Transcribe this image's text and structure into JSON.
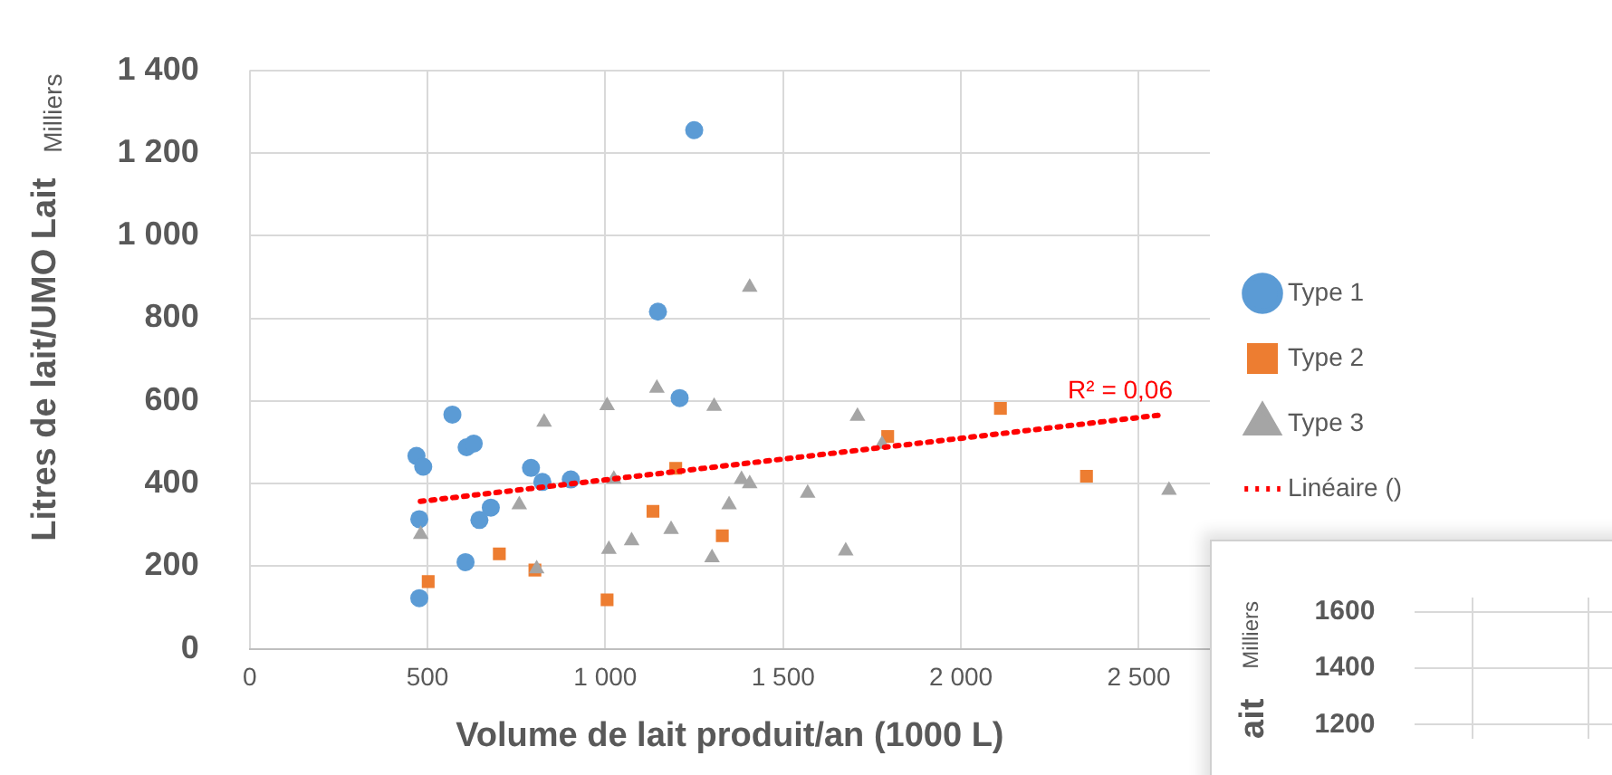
{
  "chart_data": [
    {
      "type": "scatter",
      "xlabel": "Volume de lait produit/an (1000 L)",
      "ylabel": "Litres de lait/UMO Lait",
      "annotations": [
        "Milliers",
        "R² = 0,06"
      ],
      "xlim": [
        0,
        2700
      ],
      "xticks": [
        {
          "value": 0,
          "label": "0"
        },
        {
          "value": 500,
          "label": "500"
        },
        {
          "value": 1000,
          "label": "1 000"
        },
        {
          "value": 1500,
          "label": "1 500"
        },
        {
          "value": 2000,
          "label": "2 000"
        },
        {
          "value": 2500,
          "label": "2 500"
        }
      ],
      "ylim": [
        0,
        1400
      ],
      "yticks": [
        {
          "value": 0,
          "label": "0"
        },
        {
          "value": 200,
          "label": "200"
        },
        {
          "value": 400,
          "label": "400"
        },
        {
          "value": 600,
          "label": "600"
        },
        {
          "value": 800,
          "label": "800"
        },
        {
          "value": 1000,
          "label": "1 000"
        },
        {
          "value": 1200,
          "label": "1 200"
        },
        {
          "value": 1400,
          "label": "1 400"
        }
      ],
      "grid": true,
      "legend": "right",
      "series": [
        {
          "name": "Type 1",
          "color": "#5b9bd5",
          "marker": "circle",
          "x": [
            1250,
            1148,
            1209,
            570,
            469,
            488,
            610,
            630,
            791,
            823,
            903,
            477,
            678,
            646,
            607,
            477
          ],
          "values": [
            1255,
            816,
            607,
            567,
            467,
            441,
            488,
            497,
            438,
            404,
            410,
            314,
            342,
            312,
            210,
            123
          ]
        },
        {
          "name": "Type 2",
          "color": "#ed7d31",
          "marker": "square",
          "x": [
            502,
            702,
            802,
            1005,
            1134,
            1198,
            1329,
            2111,
            2353,
            1794
          ],
          "values": [
            163,
            230,
            191,
            119,
            333,
            437,
            274,
            582,
            418,
            514
          ]
        },
        {
          "name": "Type 3",
          "color": "#a5a5a5",
          "marker": "triangle",
          "x": [
            481,
            758,
            828,
            807,
            1005,
            1010,
            1024,
            1074,
            1145,
            1185,
            1306,
            1300,
            1348,
            1383,
            1406,
            1406,
            1709,
            1569,
            1676,
            1778,
            2585
          ],
          "values": [
            277,
            349,
            549,
            194,
            589,
            241,
            411,
            262,
            631,
            289,
            587,
            221,
            349,
            410,
            400,
            875,
            563,
            377,
            237,
            495,
            384
          ]
        },
        {
          "name": "Linéaire ()",
          "type": "line",
          "color": "#ff0000",
          "marker": "none",
          "line_style": "dotted",
          "x": [
            480,
            2560
          ],
          "values": [
            357,
            566
          ]
        }
      ]
    },
    {
      "type": "scatter",
      "ylabel": "ait",
      "annotations": [
        "Milliers"
      ],
      "categories": [
        null,
        null
      ],
      "ylim": [
        1150,
        1650
      ],
      "yticks": [
        1200,
        1400,
        1600
      ],
      "grid": true,
      "tick_labels": "y"
    }
  ]
}
